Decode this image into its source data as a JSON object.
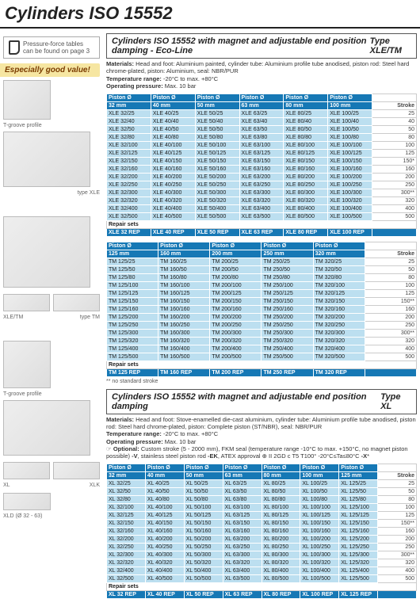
{
  "page_title": "Cylinders ISO 15552",
  "note_text": "Pressure-force tables can be found on page 3",
  "banner": "Especially good value!",
  "captions": {
    "tgroove": "T-groove profile",
    "typexle": "type XLE",
    "xletm": "XLE/TM",
    "typetm": "type TM",
    "tgroove2": "T-groove profile",
    "xl": "XL",
    "xlk": "XLK",
    "xld": "XLD (Ø 32 - 63)"
  },
  "sec1": {
    "title": "Cylinders ISO 15552 with magnet and adjustable end position damping - Eco-Line",
    "type": "Type XLE/TM",
    "meta_lines": [
      "<b>Materials:</b> Head and foot: Aluminium painted, cylinder tube: Aluminium profile tube anodised, piston rod: Steel hard chrome-plated, piston: Aluminium, seal: NBR/PUR",
      "<b>Temperature range:</b> -20°C to max. +80°C",
      "<b>Operating pressure:</b> Max. 10 bar"
    ],
    "hdr_top": [
      "Piston Ø",
      "Piston Ø",
      "Piston Ø",
      "Piston Ø",
      "Piston Ø",
      "Piston Ø",
      ""
    ],
    "hdr_dia": [
      "32 mm",
      "40 mm",
      "50 mm",
      "63 mm",
      "80 mm",
      "100 mm",
      "Stroke"
    ],
    "rows": [
      [
        "XLE 32/25",
        "XLE 40/25",
        "XLE 50/25",
        "XLE 63/25",
        "XLE 80/25",
        "XLE 100/25",
        "25"
      ],
      [
        "XLE 32/40",
        "XLE 40/40",
        "XLE 50/40",
        "XLE 63/40",
        "XLE 80/40",
        "XLE 100/40",
        "40"
      ],
      [
        "XLE 32/50",
        "XLE 40/50",
        "XLE 50/50",
        "XLE 63/50",
        "XLE 80/50",
        "XLE 100/50",
        "50"
      ],
      [
        "XLE 32/80",
        "XLE 40/80",
        "XLE 50/80",
        "XLE 63/80",
        "XLE 80/80",
        "XLE 100/80",
        "80"
      ],
      [
        "XLE 32/100",
        "XLE 40/100",
        "XLE 50/100",
        "XLE 63/100",
        "XLE 80/100",
        "XLE 100/100",
        "100"
      ],
      [
        "XLE 32/125",
        "XLE 40/125",
        "XLE 50/125",
        "XLE 63/125",
        "XLE 80/125",
        "XLE 100/125",
        "125"
      ],
      [
        "XLE 32/150",
        "XLE 40/150",
        "XLE 50/150",
        "XLE 63/150",
        "XLE 80/150",
        "XLE 100/150",
        "150*"
      ],
      [
        "XLE 32/160",
        "XLE 40/160",
        "XLE 50/160",
        "XLE 63/160",
        "XLE 80/160",
        "XLE 100/160",
        "160"
      ],
      [
        "XLE 32/200",
        "XLE 40/200",
        "XLE 50/200",
        "XLE 63/200",
        "XLE 80/200",
        "XLE 100/200",
        "200"
      ],
      [
        "XLE 32/250",
        "XLE 40/250",
        "XLE 50/250",
        "XLE 63/250",
        "XLE 80/250",
        "XLE 100/250",
        "250"
      ],
      [
        "XLE 32/300",
        "XLE 40/300",
        "XLE 50/300",
        "XLE 63/300",
        "XLE 80/300",
        "XLE 100/300",
        "300**"
      ],
      [
        "XLE 32/320",
        "XLE 40/320",
        "XLE 50/320",
        "XLE 63/320",
        "XLE 80/320",
        "XLE 100/320",
        "320"
      ],
      [
        "XLE 32/400",
        "XLE 40/400",
        "XLE 50/400",
        "XLE 63/400",
        "XLE 80/400",
        "XLE 100/400",
        "400"
      ],
      [
        "XLE 32/500",
        "XLE 40/500",
        "XLE 50/500",
        "XLE 63/500",
        "XLE 80/500",
        "XLE 100/500",
        "500"
      ]
    ],
    "repair_label": "Repair sets",
    "repair": [
      "XLE 32 REP",
      "XLE 40 REP",
      "XLE 50 REP",
      "XLE 63 REP",
      "XLE 80 REP",
      "XLE 100 REP",
      ""
    ]
  },
  "sec1b": {
    "hdr_top": [
      "Piston Ø",
      "Piston Ø",
      "Piston Ø",
      "Piston Ø",
      "Piston Ø",
      ""
    ],
    "hdr_dia": [
      "125 mm",
      "160 mm",
      "200 mm",
      "250 mm",
      "320 mm",
      "Stroke"
    ],
    "rows": [
      [
        "TM 125/25",
        "TM 160/25",
        "TM 200/25",
        "TM 250/25",
        "TM 320/25",
        "25"
      ],
      [
        "TM 125/50",
        "TM 160/50",
        "TM 200/50",
        "TM 250/50",
        "TM 320/50",
        "50"
      ],
      [
        "TM 125/80",
        "TM 160/80",
        "TM 200/80",
        "TM 250/80",
        "TM 320/80",
        "80"
      ],
      [
        "TM 125/100",
        "TM 160/100",
        "TM 200/100",
        "TM 250/100",
        "TM 320/100",
        "100"
      ],
      [
        "TM 125/125",
        "TM 160/125",
        "TM 200/125",
        "TM 250/125",
        "TM 320/125",
        "125"
      ],
      [
        "TM 125/150",
        "TM 160/150",
        "TM 200/150",
        "TM 250/150",
        "TM 320/150",
        "150**"
      ],
      [
        "TM 125/160",
        "TM 160/160",
        "TM 200/160",
        "TM 250/160",
        "TM 320/160",
        "160"
      ],
      [
        "TM 125/200",
        "TM 160/200",
        "TM 200/200",
        "TM 250/200",
        "TM 320/200",
        "200"
      ],
      [
        "TM 125/250",
        "TM 160/250",
        "TM 200/250",
        "TM 250/250",
        "TM 320/250",
        "250"
      ],
      [
        "TM 125/300",
        "TM 160/300",
        "TM 200/300",
        "TM 250/300",
        "TM 320/300",
        "300**"
      ],
      [
        "TM 125/320",
        "TM 160/320",
        "TM 200/320",
        "TM 250/320",
        "TM 320/320",
        "320"
      ],
      [
        "TM 125/400",
        "TM 160/400",
        "TM 200/400",
        "TM 250/400",
        "TM 320/400",
        "400"
      ],
      [
        "TM 125/500",
        "TM 160/500",
        "TM 200/500",
        "TM 250/500",
        "TM 320/500",
        "500"
      ]
    ],
    "repair_label": "Repair sets",
    "repair": [
      "TM 125 REP",
      "TM 160 REP",
      "TM 200 REP",
      "TM 250 REP",
      "TM 320 REP",
      ""
    ],
    "footnote": "** no standard stroke"
  },
  "sec2": {
    "title": "Cylinders ISO 15552 with magnet and adjustable end position damping",
    "type": "Type XL",
    "meta_lines": [
      "<b>Materials:</b> Head and foot: Stove-enamelled die-cast aluminium, cylinder tube: Aluminium profile tube anodised, piston rod: Steel hard chrome-plated, piston: Complete piston (ST/NBR), seal: NBR/PUR",
      "<b>Temperature range:</b> -20°C to max. +80°C",
      "<b>Operating pressure:</b> Max. 10 bar",
      "☞ <b>Optional:</b> Custom stroke (5 - 2000 mm), FKM seal (temperature range -10°C to max. +150°C, no magnet piston possible) <b>-V</b>, stainless steel piston rod <b>-EK</b>, ATEX approval ⊕ II 2GD c T5 T100° -20°C≤Ta≤80°C <b>-X</b>*"
    ],
    "hdr_top": [
      "Piston Ø",
      "Piston Ø",
      "Piston Ø",
      "Piston Ø",
      "Piston Ø",
      "Piston Ø",
      "Piston Ø",
      ""
    ],
    "hdr_dia": [
      "32 mm",
      "40 mm",
      "50 mm",
      "63 mm",
      "80 mm",
      "100 mm",
      "125 mm",
      "Stroke"
    ],
    "rows": [
      [
        "XL 32/25",
        "XL 40/25",
        "XL 50/25",
        "XL 63/25",
        "XL 80/25",
        "XL 100/25",
        "XL 125/25",
        "25"
      ],
      [
        "XL 32/50",
        "XL 40/50",
        "XL 50/50",
        "XL 63/50",
        "XL 80/50",
        "XL 100/50",
        "XL 125/50",
        "50"
      ],
      [
        "XL 32/80",
        "XL 40/80",
        "XL 50/80",
        "XL 63/80",
        "XL 80/80",
        "XL 100/80",
        "XL 125/80",
        "80"
      ],
      [
        "XL 32/100",
        "XL 40/100",
        "XL 50/100",
        "XL 63/100",
        "XL 80/100",
        "XL 100/100",
        "XL 125/100",
        "100"
      ],
      [
        "XL 32/125",
        "XL 40/125",
        "XL 50/125",
        "XL 63/125",
        "XL 80/125",
        "XL 100/125",
        "XL 125/125",
        "125"
      ],
      [
        "XL 32/150",
        "XL 40/150",
        "XL 50/150",
        "XL 63/150",
        "XL 80/150",
        "XL 100/150",
        "XL 125/150",
        "150**"
      ],
      [
        "XL 32/160",
        "XL 40/160",
        "XL 50/160",
        "XL 63/160",
        "XL 80/160",
        "XL 100/160",
        "XL 125/160",
        "160"
      ],
      [
        "XL 32/200",
        "XL 40/200",
        "XL 50/200",
        "XL 63/200",
        "XL 80/200",
        "XL 100/200",
        "XL 125/200",
        "200"
      ],
      [
        "XL 32/250",
        "XL 40/250",
        "XL 50/250",
        "XL 63/250",
        "XL 80/250",
        "XL 100/250",
        "XL 125/250",
        "250"
      ],
      [
        "XL 32/300",
        "XL 40/300",
        "XL 50/300",
        "XL 63/300",
        "XL 80/300",
        "XL 100/300",
        "XL 125/300",
        "300**"
      ],
      [
        "XL 32/320",
        "XL 40/320",
        "XL 50/320",
        "XL 63/320",
        "XL 80/320",
        "XL 100/320",
        "XL 125/320",
        "320"
      ],
      [
        "XL 32/400",
        "XL 40/400",
        "XL 50/400",
        "XL 63/400",
        "XL 80/400",
        "XL 100/400",
        "XL 125/400",
        "400"
      ],
      [
        "XL 32/500",
        "XL 40/500",
        "XL 50/500",
        "XL 63/500",
        "XL 80/500",
        "XL 100/500",
        "XL 125/500",
        "500"
      ]
    ],
    "repair_label": "Repair sets",
    "repair": [
      "XL 32 REP",
      "XL 40 REP",
      "XL 50 REP",
      "XL 63 REP",
      "XL 80 REP",
      "XL 100 REP",
      "XL 125 REP",
      ""
    ]
  }
}
